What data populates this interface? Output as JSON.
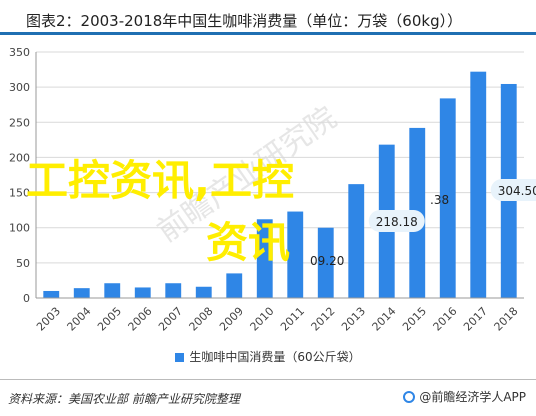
{
  "title": "图表2：2003-2018年中国生咖啡消费量（单位：万袋（60kg））",
  "chart_data": {
    "type": "bar",
    "categories": [
      "2003",
      "2004",
      "2005",
      "2006",
      "2007",
      "2008",
      "2009",
      "2010",
      "2011",
      "2012",
      "2013",
      "2014",
      "2015",
      "2016",
      "2017",
      "2018"
    ],
    "series": [
      {
        "name": "生咖啡中国消费量（60公斤袋）",
        "values": [
          10,
          14,
          21,
          15,
          21,
          16,
          35,
          112,
          123,
          100,
          162,
          218.18,
          242,
          284,
          322,
          304.5
        ],
        "color": "#2f86e6"
      }
    ],
    "data_labels": {
      "11": "218.18",
      "15": "304.50"
    },
    "ylim": [
      0,
      350
    ],
    "yticks": [
      0,
      50,
      100,
      150,
      200,
      250,
      300,
      350
    ],
    "grid": true,
    "legend": "bottom",
    "watermark": "前瞻产业研究院"
  },
  "overlay": {
    "line1": "工控资讯,工控",
    "line2": "资讯"
  },
  "fragments": {
    "f1": ".38",
    "f2": "09.20"
  },
  "source": "资料来源：美国农业部 前瞻产业研究院整理",
  "brand": "@前瞻经济学人APP"
}
